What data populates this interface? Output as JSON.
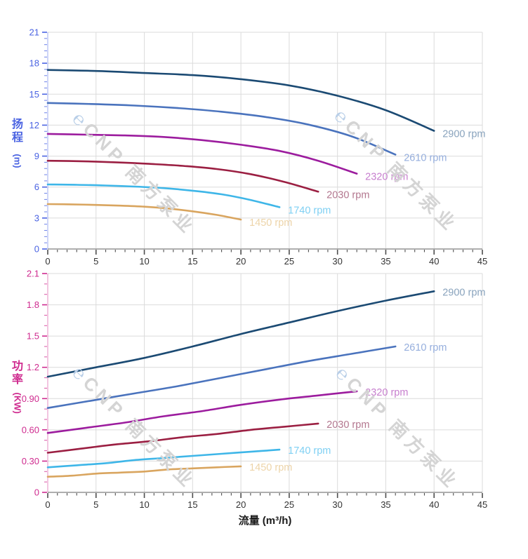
{
  "page": {
    "background": "#ffffff"
  },
  "watermark": {
    "logo_glyph": "℮",
    "text": "CNP 南方泵业"
  },
  "chart_data": [
    {
      "id": "head",
      "type": "line",
      "title": "",
      "ylabel": "扬程",
      "ylabel_unit": "(m)",
      "xlabel": "",
      "xlim": [
        0,
        45
      ],
      "x_major": 5,
      "x_minor": 1,
      "ylim": [
        0,
        21
      ],
      "y_major": 3,
      "y_minor": 0.6,
      "grid": true,
      "legend_position": "end-of-curve",
      "accent": "#4a63e2",
      "xtick_labels": [
        "0",
        "5",
        "10",
        "15",
        "20",
        "25",
        "30",
        "35",
        "40",
        "45"
      ],
      "ytick_labels": [
        "0",
        "3",
        "6",
        "9",
        "12",
        "15",
        "18",
        "21"
      ],
      "series": [
        {
          "name": "2900 rpm",
          "color": "#1b4a73",
          "label_color": "#89a3bd",
          "points": [
            [
              0,
              17.35
            ],
            [
              5,
              17.25
            ],
            [
              10,
              17.05
            ],
            [
              15,
              16.85
            ],
            [
              20,
              16.45
            ],
            [
              25,
              15.85
            ],
            [
              30,
              14.85
            ],
            [
              35,
              13.45
            ],
            [
              40,
              11.45
            ]
          ]
        },
        {
          "name": "2610 rpm",
          "color": "#4a73bd",
          "label_color": "#95aedd",
          "points": [
            [
              0,
              14.15
            ],
            [
              4.5,
              14.05
            ],
            [
              9,
              13.9
            ],
            [
              13.5,
              13.65
            ],
            [
              18,
              13.3
            ],
            [
              22.5,
              12.8
            ],
            [
              27,
              12.05
            ],
            [
              31.5,
              10.9
            ],
            [
              36,
              9.15
            ]
          ]
        },
        {
          "name": "2320 rpm",
          "color": "#9c1c9e",
          "label_color": "#c77fce",
          "points": [
            [
              0,
              11.15
            ],
            [
              4,
              11.08
            ],
            [
              8,
              11.0
            ],
            [
              12,
              10.85
            ],
            [
              16,
              10.55
            ],
            [
              20,
              10.1
            ],
            [
              24,
              9.5
            ],
            [
              28,
              8.55
            ],
            [
              32,
              7.3
            ]
          ]
        },
        {
          "name": "2030 rpm",
          "color": "#9b1f42",
          "label_color": "#b3778f",
          "points": [
            [
              0,
              8.55
            ],
            [
              3.5,
              8.5
            ],
            [
              7,
              8.4
            ],
            [
              10.5,
              8.25
            ],
            [
              14,
              8.05
            ],
            [
              17.5,
              7.75
            ],
            [
              21,
              7.25
            ],
            [
              24.5,
              6.5
            ],
            [
              28,
              5.55
            ]
          ]
        },
        {
          "name": "1740 rpm",
          "color": "#3eb6e8",
          "label_color": "#7fd0f3",
          "points": [
            [
              0,
              6.25
            ],
            [
              3,
              6.22
            ],
            [
              6,
              6.15
            ],
            [
              9,
              6.05
            ],
            [
              12,
              5.9
            ],
            [
              15,
              5.65
            ],
            [
              18,
              5.3
            ],
            [
              21,
              4.75
            ],
            [
              24,
              4.05
            ]
          ]
        },
        {
          "name": "1450 rpm",
          "color": "#d9a55f",
          "label_color": "#edd4a9",
          "points": [
            [
              0,
              4.35
            ],
            [
              2.5,
              4.32
            ],
            [
              5,
              4.27
            ],
            [
              7.5,
              4.2
            ],
            [
              10,
              4.1
            ],
            [
              12.5,
              3.92
            ],
            [
              15,
              3.65
            ],
            [
              17.5,
              3.3
            ],
            [
              20,
              2.85
            ]
          ]
        }
      ]
    },
    {
      "id": "power",
      "type": "line",
      "title": "",
      "ylabel": "功率",
      "ylabel_unit": "(KW)",
      "xlabel": "流量 (m³/h)",
      "xlim": [
        0,
        45
      ],
      "x_major": 5,
      "x_minor": 1,
      "ylim": [
        0,
        2.1
      ],
      "y_major": 0.3,
      "y_minor": 0.1,
      "grid": true,
      "legend_position": "end-of-curve",
      "accent": "#cf2b8f",
      "xtick_labels": [
        "0",
        "5",
        "10",
        "15",
        "20",
        "25",
        "30",
        "35",
        "40",
        "45"
      ],
      "ytick_labels": [
        "0",
        "0.30",
        "0.60",
        "0.90",
        "1.2",
        "1.5",
        "1.8",
        "2.1"
      ],
      "series": [
        {
          "name": "2900 rpm",
          "color": "#1b4a73",
          "label_color": "#89a3bd",
          "points": [
            [
              0,
              1.11
            ],
            [
              5,
              1.2
            ],
            [
              10,
              1.29
            ],
            [
              15,
              1.4
            ],
            [
              20,
              1.52
            ],
            [
              25,
              1.63
            ],
            [
              30,
              1.74
            ],
            [
              35,
              1.84
            ],
            [
              40,
              1.93
            ]
          ]
        },
        {
          "name": "2610 rpm",
          "color": "#4a73bd",
          "label_color": "#95aedd",
          "points": [
            [
              0,
              0.81
            ],
            [
              4.5,
              0.88
            ],
            [
              9,
              0.95
            ],
            [
              13.5,
              1.02
            ],
            [
              18,
              1.1
            ],
            [
              22.5,
              1.18
            ],
            [
              27,
              1.26
            ],
            [
              31.5,
              1.33
            ],
            [
              36,
              1.4
            ]
          ]
        },
        {
          "name": "2320 rpm",
          "color": "#9c1c9e",
          "label_color": "#c77fce",
          "points": [
            [
              0,
              0.57
            ],
            [
              4,
              0.62
            ],
            [
              8,
              0.67
            ],
            [
              12,
              0.73
            ],
            [
              16,
              0.78
            ],
            [
              20,
              0.84
            ],
            [
              24,
              0.89
            ],
            [
              28,
              0.93
            ],
            [
              32,
              0.97
            ]
          ]
        },
        {
          "name": "2030 rpm",
          "color": "#9b1f42",
          "label_color": "#b3778f",
          "points": [
            [
              0,
              0.38
            ],
            [
              3.5,
              0.42
            ],
            [
              7,
              0.46
            ],
            [
              10.5,
              0.49
            ],
            [
              14,
              0.53
            ],
            [
              17.5,
              0.56
            ],
            [
              21,
              0.6
            ],
            [
              24.5,
              0.63
            ],
            [
              28,
              0.66
            ]
          ]
        },
        {
          "name": "1740 rpm",
          "color": "#3eb6e8",
          "label_color": "#7fd0f3",
          "points": [
            [
              0,
              0.24
            ],
            [
              3,
              0.26
            ],
            [
              6,
              0.28
            ],
            [
              9,
              0.31
            ],
            [
              12,
              0.33
            ],
            [
              15,
              0.35
            ],
            [
              18,
              0.37
            ],
            [
              21,
              0.39
            ],
            [
              24,
              0.41
            ]
          ]
        },
        {
          "name": "1450 rpm",
          "color": "#d9a55f",
          "label_color": "#edd4a9",
          "points": [
            [
              0,
              0.15
            ],
            [
              2.5,
              0.16
            ],
            [
              5,
              0.18
            ],
            [
              7.5,
              0.19
            ],
            [
              10,
              0.2
            ],
            [
              12.5,
              0.22
            ],
            [
              15,
              0.23
            ],
            [
              17.5,
              0.24
            ],
            [
              20,
              0.25
            ]
          ]
        }
      ]
    }
  ]
}
